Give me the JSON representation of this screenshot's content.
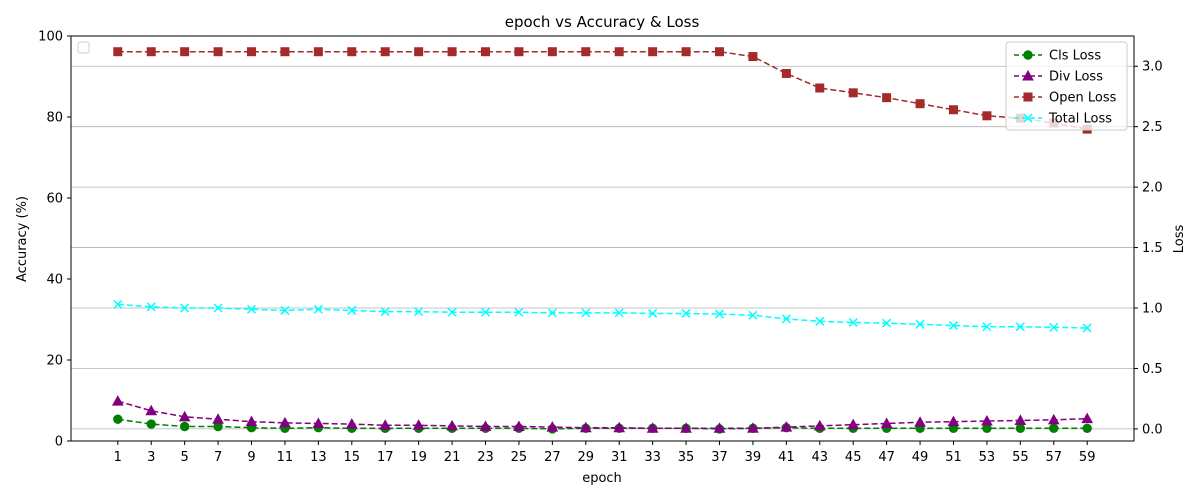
{
  "chart_data": {
    "type": "line",
    "title": "epoch vs Accuracy & Loss",
    "xlabel": "epoch",
    "ylabel_left": "Accuracy (%)",
    "ylabel_right": "Loss",
    "x": [
      1,
      3,
      5,
      7,
      9,
      11,
      13,
      15,
      17,
      19,
      21,
      23,
      25,
      27,
      29,
      31,
      33,
      35,
      37,
      39,
      41,
      43,
      45,
      47,
      49,
      51,
      53,
      55,
      57,
      59
    ],
    "ylim_left": [
      0,
      100
    ],
    "yticks_left": [
      0,
      20,
      40,
      60,
      80,
      100
    ],
    "ylim_right": [
      -0.1,
      3.25
    ],
    "yticks_right": [
      0.0,
      0.5,
      1.0,
      1.5,
      2.0,
      2.5,
      3.0
    ],
    "ytick_labels_right": [
      "0.0",
      "0.5",
      "1.0",
      "1.5",
      "2.0",
      "2.5",
      "3.0"
    ],
    "grid": "horizontal (right axis)",
    "legend_placement": "top-right",
    "empty_legend_placement": "top-left",
    "series": [
      {
        "name": "Cls Loss",
        "axis": "right",
        "color": "#008000",
        "marker": "circle",
        "linestyle": "dashed",
        "values": [
          0.08,
          0.04,
          0.02,
          0.02,
          0.01,
          0.005,
          0.01,
          0.005,
          0.005,
          0.005,
          0.005,
          0.005,
          0.005,
          0.0,
          0.005,
          0.005,
          0.005,
          0.005,
          0.0,
          0.005,
          0.01,
          0.005,
          0.005,
          0.005,
          0.005,
          0.005,
          0.005,
          0.005,
          0.005,
          0.005
        ]
      },
      {
        "name": "Div Loss",
        "axis": "right",
        "color": "#800080",
        "marker": "triangle",
        "linestyle": "dashed",
        "values": [
          0.23,
          0.15,
          0.1,
          0.08,
          0.06,
          0.05,
          0.045,
          0.04,
          0.03,
          0.03,
          0.025,
          0.02,
          0.02,
          0.015,
          0.01,
          0.01,
          0.005,
          0.005,
          0.005,
          0.005,
          0.015,
          0.025,
          0.035,
          0.045,
          0.055,
          0.06,
          0.065,
          0.07,
          0.075,
          0.085
        ]
      },
      {
        "name": "Open Loss",
        "axis": "right",
        "color": "#a52a2a",
        "marker": "square",
        "linestyle": "dashed",
        "values": [
          3.12,
          3.12,
          3.12,
          3.12,
          3.12,
          3.12,
          3.12,
          3.12,
          3.12,
          3.12,
          3.12,
          3.12,
          3.12,
          3.12,
          3.12,
          3.12,
          3.12,
          3.12,
          3.12,
          3.08,
          2.94,
          2.82,
          2.78,
          2.74,
          2.69,
          2.64,
          2.59,
          2.57,
          2.53,
          2.48
        ]
      },
      {
        "name": "Total Loss",
        "axis": "right",
        "color": "#00ffff",
        "marker": "x",
        "linestyle": "dashed",
        "values": [
          1.03,
          1.01,
          1.0,
          1.0,
          0.99,
          0.98,
          0.99,
          0.98,
          0.97,
          0.97,
          0.965,
          0.965,
          0.965,
          0.96,
          0.96,
          0.96,
          0.955,
          0.955,
          0.95,
          0.94,
          0.91,
          0.89,
          0.88,
          0.875,
          0.865,
          0.855,
          0.845,
          0.845,
          0.84,
          0.835
        ]
      }
    ]
  }
}
